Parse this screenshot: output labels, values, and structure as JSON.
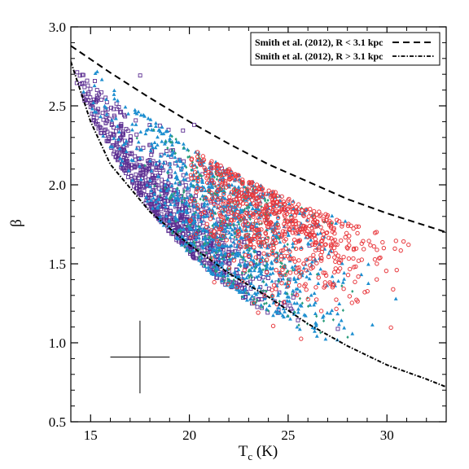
{
  "chart_data": {
    "type": "scatter",
    "title": "",
    "xlabel_main": "T",
    "xlabel_sub": "c",
    "xlabel_unit": " (K)",
    "ylabel": "β",
    "xlim": [
      14,
      33
    ],
    "ylim": [
      0.5,
      3.0
    ],
    "xticks": [
      15,
      20,
      25,
      30
    ],
    "yticks": [
      0.5,
      1.0,
      1.5,
      2.0,
      2.5,
      3.0
    ],
    "xtick_labels": [
      "15",
      "20",
      "25",
      "30"
    ],
    "ytick_labels": [
      "0.5",
      "1.0",
      "1.5",
      "2.0",
      "2.5",
      "3.0"
    ],
    "legend_position": "top-right",
    "legend": [
      {
        "label": "Smith et al. (2012), R < 3.1 kpc",
        "style": "dashed"
      },
      {
        "label": "Smith et al. (2012), R > 3.1 kpc",
        "style": "dash-dot"
      }
    ],
    "curves": [
      {
        "style": "dashed",
        "points": [
          [
            14,
            2.88
          ],
          [
            16,
            2.71
          ],
          [
            18,
            2.55
          ],
          [
            20,
            2.4
          ],
          [
            22,
            2.26
          ],
          [
            24,
            2.13
          ],
          [
            26,
            2.02
          ],
          [
            28,
            1.91
          ],
          [
            30,
            1.82
          ],
          [
            32,
            1.74
          ],
          [
            33,
            1.7
          ]
        ]
      },
      {
        "style": "dash-dot",
        "points": [
          [
            14,
            2.78
          ],
          [
            15,
            2.4
          ],
          [
            16,
            2.13
          ],
          [
            18,
            1.83
          ],
          [
            20,
            1.62
          ],
          [
            22,
            1.44
          ],
          [
            24,
            1.29
          ],
          [
            26,
            1.12
          ],
          [
            28,
            0.98
          ],
          [
            30,
            0.86
          ],
          [
            32,
            0.77
          ],
          [
            33,
            0.72
          ]
        ]
      }
    ],
    "error_bar": {
      "x": 17.5,
      "y": 0.91,
      "xerr": 1.5,
      "yerr": 0.23
    },
    "series_styles": [
      {
        "color": "#5b2d91",
        "marker": "open-square",
        "xmean": 19.0,
        "xsd": 2.6,
        "xmin": 14.3,
        "xmax": 29.5,
        "count": 900
      },
      {
        "color": "#1e8fd0",
        "marker": "filled-triangle",
        "xmean": 22.0,
        "xsd": 2.6,
        "xmin": 14.5,
        "xmax": 30.5,
        "count": 1000
      },
      {
        "color": "#2a9d7c",
        "marker": "filled-diamond",
        "xmean": 22.5,
        "xsd": 2.2,
        "xmin": 17,
        "xmax": 29,
        "count": 300
      },
      {
        "color": "#e8383d",
        "marker": "open-circle",
        "xmean": 24.0,
        "xsd": 2.6,
        "xmin": 20,
        "xmax": 32,
        "count": 750
      }
    ]
  }
}
